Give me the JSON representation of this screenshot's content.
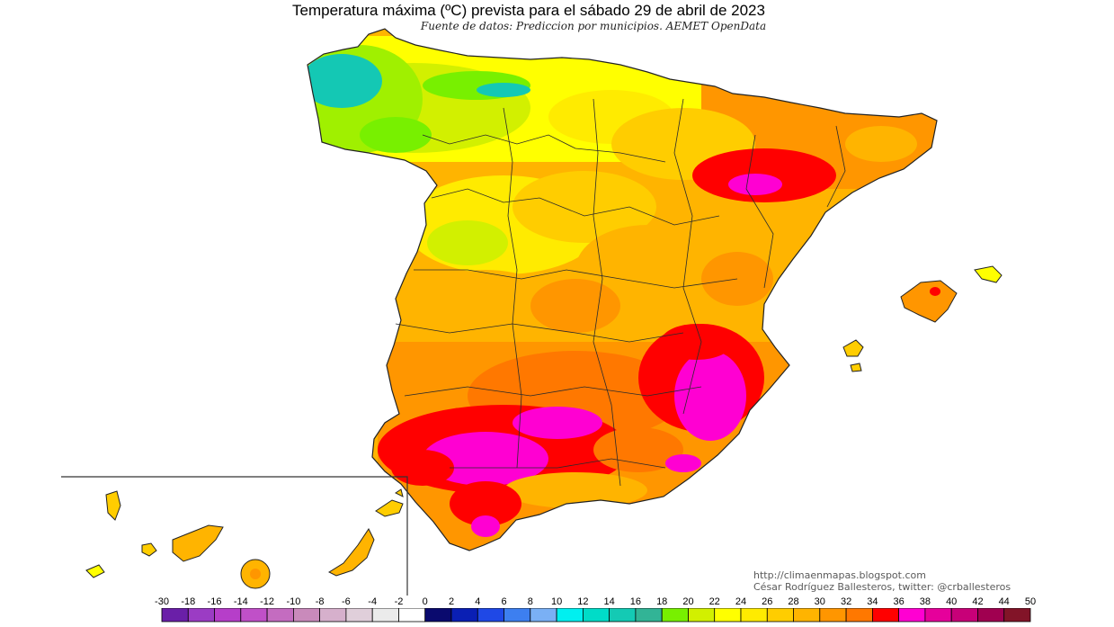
{
  "title": "Temperatura máxima (ºC) prevista para el sábado 29 de abril de 2023",
  "subtitle": "Fuente de datos: Prediccion por municipios. AEMET OpenData",
  "credits": {
    "url": "http://climaenmapas.blogspot.com",
    "author": "César Rodríguez Ballesteros, twitter: @crballesteros"
  },
  "legend": {
    "ticks": [
      "-30",
      "-18",
      "-16",
      "-14",
      "-12",
      "-10",
      "-8",
      "-6",
      "-4",
      "-2",
      "0",
      "2",
      "4",
      "6",
      "8",
      "10",
      "12",
      "14",
      "16",
      "18",
      "20",
      "22",
      "24",
      "26",
      "28",
      "30",
      "32",
      "34",
      "36",
      "38",
      "40",
      "42",
      "44",
      "50"
    ],
    "colors": [
      "#6a1fa8",
      "#9b3cc4",
      "#b63ec9",
      "#c050c8",
      "#c46cc0",
      "#c98abb",
      "#d6b0cc",
      "#e0cfda",
      "#ebebeb",
      "#ffffff",
      "#0a0a6e",
      "#0a1fb4",
      "#1f48e6",
      "#3d7ff0",
      "#7ab0f5",
      "#00f0f0",
      "#00dcc8",
      "#14cab4",
      "#32b496",
      "#78f000",
      "#d2f000",
      "#ffff00",
      "#ffeb00",
      "#ffcd00",
      "#ffb400",
      "#ff9600",
      "#ff7800",
      "#ff0000",
      "#ff00d2",
      "#e6009b",
      "#c80078",
      "#a00050",
      "#821428"
    ]
  },
  "map": {
    "regions": "Spain peninsula, Balearic Islands, Canary Islands",
    "colors": {
      "sea": "#ffffff",
      "border": "#222222",
      "t_12": "#14c8b4",
      "t_18": "#78f000",
      "t_20": "#d2f000",
      "t_22": "#ffff00",
      "t_26": "#ffcd00",
      "t_28": "#ffb400",
      "t_30": "#ff9600",
      "t_32": "#ff7800",
      "t_34": "#ff0000",
      "t_36": "#ff00d2"
    }
  }
}
